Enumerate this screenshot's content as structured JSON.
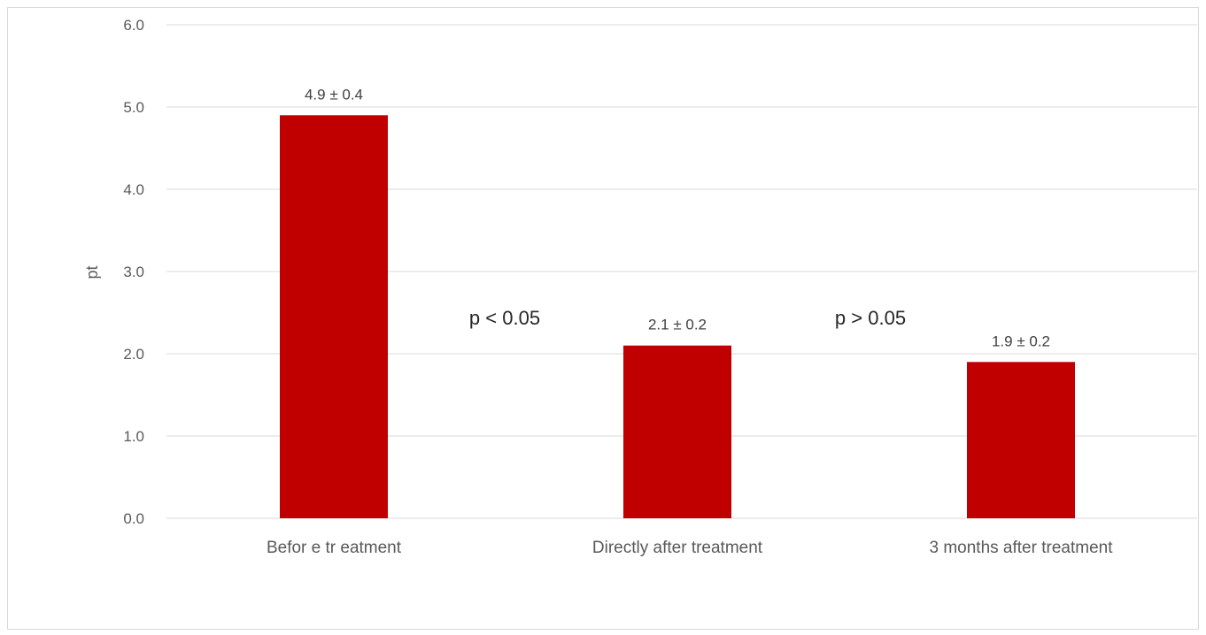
{
  "chart_data": {
    "type": "bar",
    "categories": [
      "Befor e tr eatment",
      "Directly after treatment",
      "3 months after treatment"
    ],
    "values": [
      4.9,
      2.1,
      1.9
    ],
    "data_labels": [
      "4.9 ± 0.4",
      "2.1 ± 0.2",
      "1.9 ± 0.2"
    ],
    "ylabel": "pt",
    "ylim": [
      0,
      6
    ],
    "yticks": [
      "0.0",
      "1.0",
      "2.0",
      "3.0",
      "4.0",
      "5.0",
      "6.0"
    ],
    "grid": true,
    "legend": "none",
    "bar_color": "#c00000",
    "annotations": [
      "p < 0.05",
      "p > 0.05"
    ]
  }
}
